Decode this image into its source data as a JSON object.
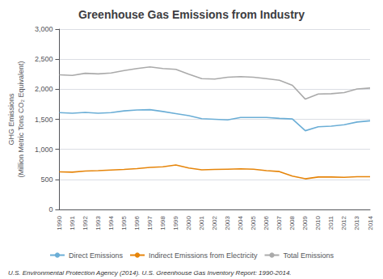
{
  "chart_data": {
    "type": "line",
    "title": "Greenhouse Gas Emissions from Industry",
    "ylabel": "GHG Emissions\n(Million Metric Tons CO₂ Equivalent)",
    "x": [
      1990,
      1991,
      1992,
      1993,
      1994,
      1995,
      1996,
      1997,
      1998,
      1999,
      2000,
      2001,
      2002,
      2003,
      2004,
      2005,
      2006,
      2007,
      2008,
      2009,
      2010,
      2011,
      2012,
      2013,
      2014
    ],
    "xlim": [
      1990,
      2014
    ],
    "xticks": [
      1990,
      1991,
      1992,
      1993,
      1994,
      1995,
      1996,
      1997,
      1998,
      1999,
      2000,
      2001,
      2002,
      2003,
      2004,
      2005,
      2006,
      2007,
      2008,
      2009,
      2010,
      2011,
      2012,
      2013,
      2014
    ],
    "series": [
      {
        "name": "Direct Emissions",
        "color": "#6baed6",
        "values": [
          1610,
          1600,
          1615,
          1600,
          1610,
          1640,
          1655,
          1660,
          1630,
          1595,
          1560,
          1510,
          1500,
          1490,
          1530,
          1530,
          1530,
          1515,
          1505,
          1310,
          1375,
          1385,
          1410,
          1455,
          1475
        ]
      },
      {
        "name": "Indirect Emissions from Electricity",
        "color": "#e6850a",
        "values": [
          625,
          620,
          640,
          645,
          655,
          665,
          680,
          700,
          710,
          740,
          690,
          660,
          665,
          670,
          675,
          670,
          645,
          630,
          555,
          510,
          540,
          540,
          535,
          545,
          545
        ]
      },
      {
        "name": "Total Emissions",
        "color": "#aaaaaa",
        "values": [
          2240,
          2230,
          2265,
          2255,
          2270,
          2310,
          2345,
          2370,
          2345,
          2330,
          2250,
          2175,
          2170,
          2200,
          2210,
          2200,
          2175,
          2150,
          2065,
          1835,
          1920,
          1925,
          1945,
          2005,
          2020
        ]
      }
    ],
    "ylim": [
      0,
      3000
    ],
    "yticks": [
      0,
      500,
      {
        "value": 1000,
        "label": "1,000"
      },
      {
        "value": 1500,
        "label": "1,500"
      },
      {
        "value": 2000,
        "label": "2,000"
      },
      {
        "value": 2500,
        "label": "2,500"
      },
      {
        "value": 3000,
        "label": "3,000"
      }
    ],
    "grid": true,
    "legend": "bottom",
    "annotations": [
      "U.S. Environmental Protection Agency (2014). U.S. Greenhouse Gas Inventory Report: 1990-2014."
    ]
  }
}
